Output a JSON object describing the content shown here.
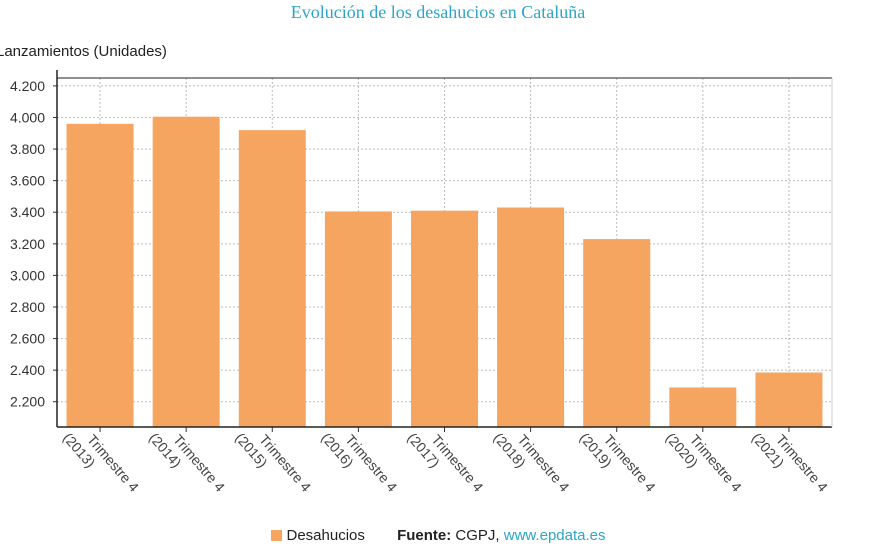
{
  "chart_data": {
    "type": "bar",
    "title": "Evolución de los desahucios en Cataluña",
    "ylabel": "Lanzamientos (Unidades)",
    "categories": [
      [
        "Trimestre 4",
        "(2013)"
      ],
      [
        "Trimestre 4",
        "(2014)"
      ],
      [
        "Trimestre 4",
        "(2015)"
      ],
      [
        "Trimestre 4",
        "(2016)"
      ],
      [
        "Trimestre 4",
        "(2017)"
      ],
      [
        "Trimestre 4",
        "(2018)"
      ],
      [
        "Trimestre 4",
        "(2019)"
      ],
      [
        "Trimestre 4",
        "(2020)"
      ],
      [
        "Trimestre 4",
        "(2021)"
      ]
    ],
    "series": [
      {
        "name": "Desahucios",
        "values": [
          3960,
          4005,
          3920,
          3405,
          3410,
          3430,
          3230,
          2290,
          2385
        ],
        "color": "#f5a55f"
      }
    ],
    "yticks": [
      "2.200",
      "2.400",
      "2.600",
      "2.800",
      "3.000",
      "3.200",
      "3.400",
      "3.600",
      "3.800",
      "4.000",
      "4.200"
    ],
    "ylim": [
      2040,
      4250
    ],
    "grid": true,
    "legend_position": "bottom"
  },
  "footer": {
    "legend_label": "Desahucios",
    "source_label": "Fuente:",
    "source_text": "CGPJ,",
    "source_link": "www.epdata.es"
  },
  "colors": {
    "bar": "#f5a55f",
    "title": "#2ba6c6",
    "link": "#2ba6c6"
  }
}
